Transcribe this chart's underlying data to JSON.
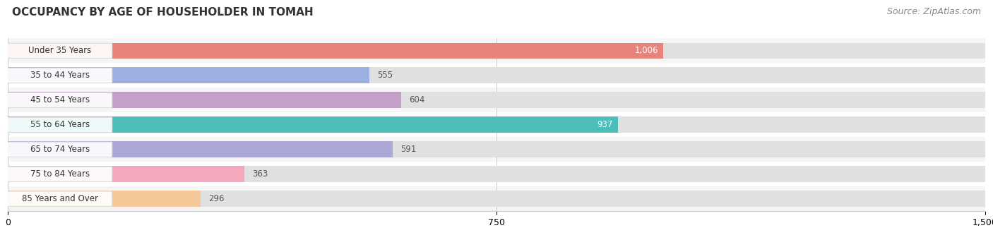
{
  "title": "OCCUPANCY BY AGE OF HOUSEHOLDER IN TOMAH",
  "source": "Source: ZipAtlas.com",
  "categories": [
    "Under 35 Years",
    "35 to 44 Years",
    "45 to 54 Years",
    "55 to 64 Years",
    "65 to 74 Years",
    "75 to 84 Years",
    "85 Years and Over"
  ],
  "values": [
    1006,
    555,
    604,
    937,
    591,
    363,
    296
  ],
  "bar_colors": [
    "#e8837a",
    "#9daee0",
    "#c4a0c8",
    "#4dbdba",
    "#aba8d8",
    "#f4a8bc",
    "#f5c89a"
  ],
  "label_inside": [
    true,
    false,
    false,
    true,
    false,
    false,
    false
  ],
  "xlim": [
    0,
    1500
  ],
  "xticks": [
    0,
    750,
    1500
  ],
  "title_fontsize": 11,
  "source_fontsize": 9,
  "bar_height": 0.65,
  "background_color": "#ffffff",
  "row_bg_colors": [
    "#f5f5f5",
    "#ffffff"
  ],
  "bar_bg_color": "#e0e0e0",
  "value_label_color_inside": "#ffffff",
  "value_label_color_outside": "#555555"
}
